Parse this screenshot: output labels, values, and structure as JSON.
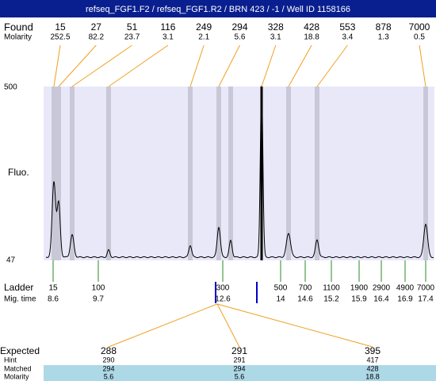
{
  "header": {
    "title": "refseq_FGF1.F2 / refseq_FGF1.R2 / BRN 423 / -1 / Well ID 1158166"
  },
  "found": {
    "label": "Found",
    "sizes": [
      15,
      27,
      51,
      116,
      249,
      294,
      328,
      428,
      553,
      878,
      7000
    ]
  },
  "molarity": {
    "label": "Molarity",
    "values": [
      252.5,
      82.2,
      23.7,
      3.1,
      2.1,
      5.6,
      3.1,
      18.8,
      3.4,
      1.3,
      0.5
    ]
  },
  "axis": {
    "label": "Fluo.",
    "top": 500,
    "bottom": 47
  },
  "ladder": {
    "label": "Ladder",
    "sizes": [
      15,
      100,
      300,
      500,
      700,
      1100,
      1900,
      2900,
      4900,
      7000
    ]
  },
  "mig_time": {
    "label": "Mig. time",
    "values": [
      8.6,
      9.7,
      12.6,
      14,
      14.6,
      15.2,
      15.9,
      16.4,
      16.9,
      17.4
    ]
  },
  "table": {
    "rows": [
      {
        "label": "Expected",
        "cells": [
          288,
          291,
          395
        ]
      },
      {
        "label": "Hint",
        "cells": [
          290,
          291,
          417
        ]
      },
      {
        "label": "Matched",
        "cells": [
          294,
          294,
          428
        ]
      },
      {
        "label": "Molarity",
        "cells": [
          5.6,
          5.6,
          18.8
        ]
      }
    ]
  }
}
